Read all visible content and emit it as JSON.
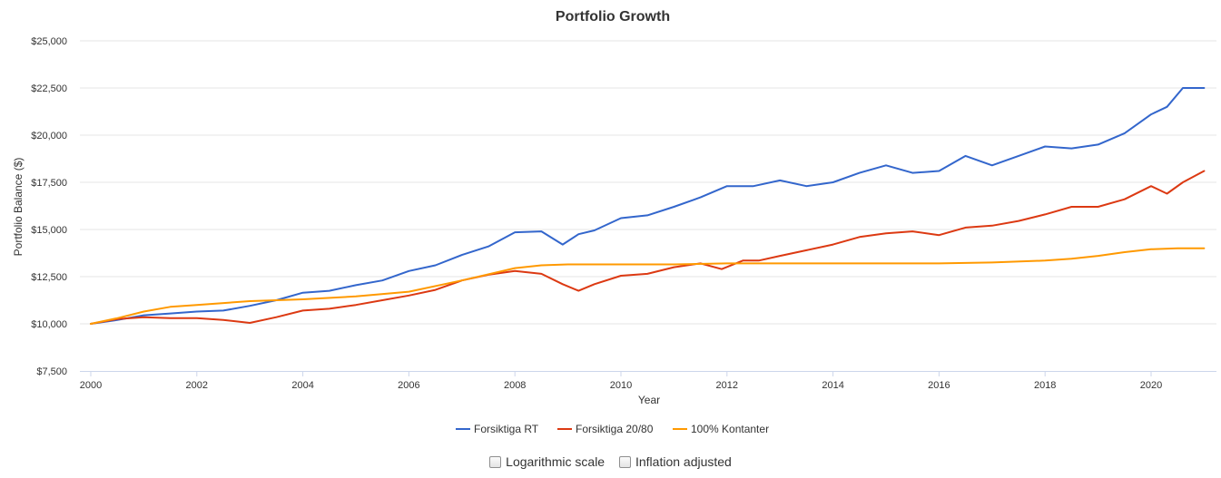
{
  "chart_data": {
    "type": "line",
    "title": "Portfolio Growth",
    "xlabel": "Year",
    "ylabel": "Portfolio Balance ($)",
    "xlim": [
      2000,
      2021
    ],
    "ylim": [
      7500,
      25000
    ],
    "x_ticks": [
      "2000",
      "2002",
      "2004",
      "2006",
      "2008",
      "2010",
      "2012",
      "2014",
      "2016",
      "2018",
      "2020"
    ],
    "y_ticks": [
      "$7,500",
      "$10,000",
      "$12,500",
      "$15,000",
      "$17,500",
      "$20,000",
      "$22,500",
      "$25,000"
    ],
    "grid": true,
    "legend_position": "bottom",
    "series": [
      {
        "name": "Forsiktiga RT",
        "color": "#3366cc",
        "x": [
          2000,
          2000.5,
          2001,
          2001.5,
          2002,
          2002.5,
          2003,
          2003.5,
          2004,
          2004.5,
          2005,
          2005.5,
          2006,
          2006.5,
          2007,
          2007.5,
          2008,
          2008.5,
          2008.9,
          2009.2,
          2009.5,
          2010,
          2010.5,
          2011,
          2011.5,
          2012,
          2012.5,
          2013,
          2013.5,
          2014,
          2014.5,
          2015,
          2015.5,
          2016,
          2016.5,
          2017,
          2017.5,
          2018,
          2018.5,
          2019,
          2019.5,
          2020,
          2020.3,
          2020.6,
          2021
        ],
        "values": [
          10000,
          10200,
          10450,
          10550,
          10650,
          10700,
          10950,
          11250,
          11650,
          11750,
          12050,
          12300,
          12800,
          13100,
          13650,
          14100,
          14850,
          14900,
          14200,
          14750,
          14950,
          15600,
          15750,
          16200,
          16700,
          17300,
          17300,
          17600,
          17300,
          17500,
          18000,
          18400,
          18000,
          18100,
          18900,
          18400,
          18900,
          19400,
          19300,
          19500,
          20100,
          21100,
          21500,
          22500,
          22500
        ]
      },
      {
        "name": "Forsiktiga 20/80",
        "color": "#dc3912",
        "x": [
          2000,
          2000.5,
          2001,
          2001.5,
          2002,
          2002.5,
          2003,
          2003.5,
          2004,
          2004.5,
          2005,
          2005.5,
          2006,
          2006.5,
          2007,
          2007.5,
          2008,
          2008.5,
          2008.9,
          2009.2,
          2009.5,
          2010,
          2010.5,
          2011,
          2011.5,
          2011.9,
          2012.3,
          2012.6,
          2013,
          2013.5,
          2014,
          2014.5,
          2015,
          2015.5,
          2016,
          2016.5,
          2017,
          2017.5,
          2018,
          2018.5,
          2019,
          2019.5,
          2020,
          2020.3,
          2020.6,
          2021
        ],
        "values": [
          10000,
          10250,
          10350,
          10300,
          10300,
          10200,
          10050,
          10350,
          10700,
          10800,
          11000,
          11250,
          11500,
          11800,
          12300,
          12600,
          12800,
          12650,
          12100,
          11750,
          12100,
          12550,
          12650,
          13000,
          13200,
          12900,
          13350,
          13350,
          13600,
          13900,
          14200,
          14600,
          14800,
          14900,
          14700,
          15100,
          15200,
          15450,
          15800,
          16200,
          16200,
          16600,
          17300,
          16900,
          17500,
          18100
        ]
      },
      {
        "name": "100% Kontanter",
        "color": "#ff9900",
        "x": [
          2000,
          2000.5,
          2001,
          2001.5,
          2002,
          2003,
          2004,
          2005,
          2006,
          2007,
          2008,
          2008.5,
          2009,
          2010,
          2011,
          2012,
          2013,
          2014,
          2015,
          2016,
          2017,
          2018,
          2018.5,
          2019,
          2019.5,
          2020,
          2020.5,
          2021
        ],
        "values": [
          10000,
          10300,
          10650,
          10900,
          11000,
          11200,
          11300,
          11450,
          11700,
          12300,
          12950,
          13100,
          13150,
          13150,
          13150,
          13200,
          13200,
          13200,
          13200,
          13200,
          13250,
          13350,
          13450,
          13600,
          13800,
          13950,
          14000,
          14000
        ]
      }
    ]
  },
  "controls": {
    "log_scale": {
      "label": "Logarithmic scale",
      "checked": false
    },
    "inflation": {
      "label": "Inflation adjusted",
      "checked": false
    }
  }
}
